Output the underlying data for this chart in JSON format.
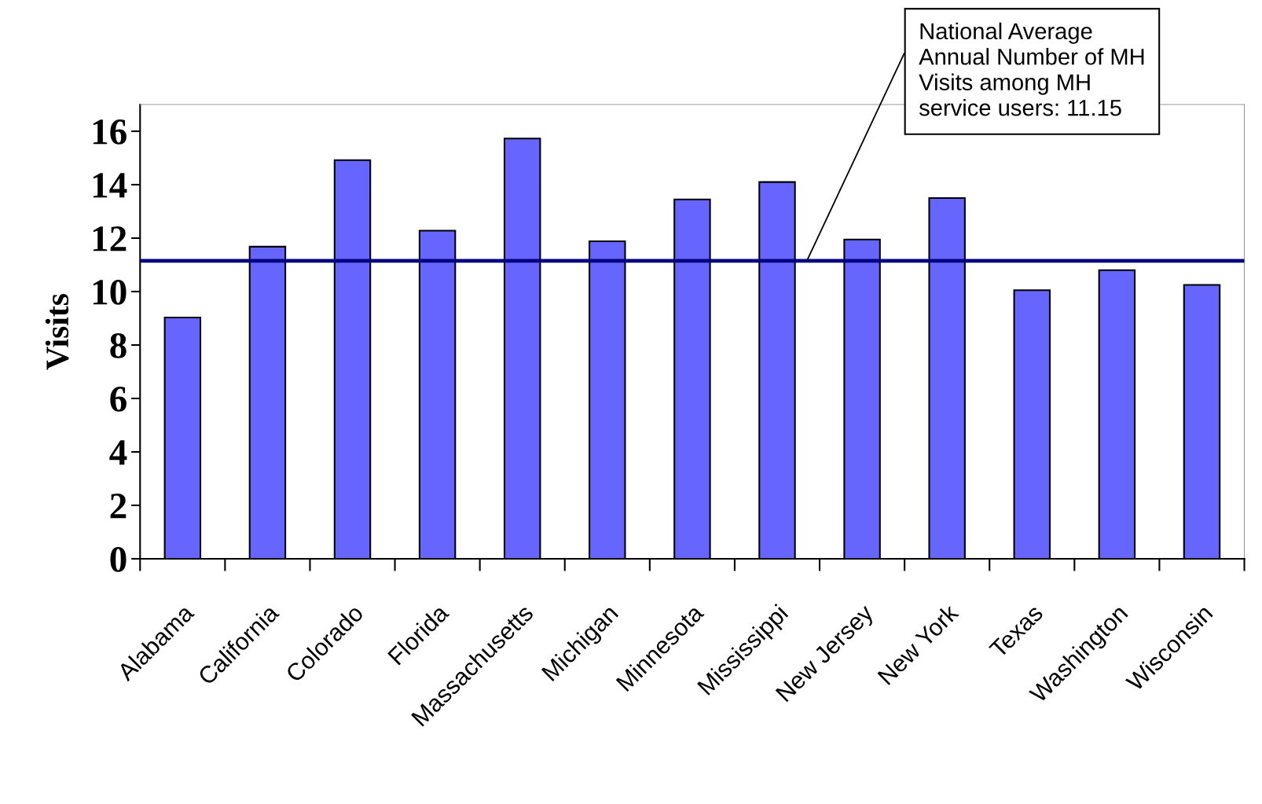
{
  "chart_data": {
    "type": "bar",
    "ylabel": "Visits",
    "categories": [
      "Alabama",
      "California",
      "Colorado",
      "Florida",
      "Massachusetts",
      "Michigan",
      "Minnesota",
      "Mississippi",
      "New Jersey",
      "New York",
      "Texas",
      "Washington",
      "Wisconsin"
    ],
    "values": [
      9.03,
      11.68,
      14.92,
      12.28,
      15.73,
      11.88,
      13.45,
      14.1,
      11.95,
      13.5,
      10.05,
      10.8,
      10.25
    ],
    "color": "#6666ff",
    "ylim": [
      0,
      17
    ],
    "yticks": [
      0,
      2,
      4,
      6,
      8,
      10,
      12,
      14,
      16
    ],
    "grid": false,
    "legend": false,
    "ref_lines": [
      {
        "axis": "y",
        "value": 11.15,
        "label": "National Average\nAnnual Number of MH\nVisits among MH\nservice users: 11.15",
        "color": "#000080",
        "line_style": "solid"
      }
    ]
  }
}
